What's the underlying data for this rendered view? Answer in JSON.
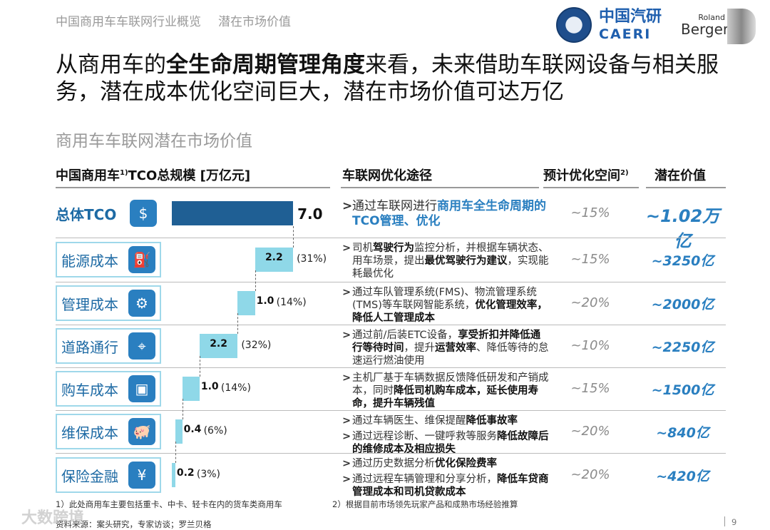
{
  "header": {
    "breadcrumb": [
      "中国商用车车联网行业概览",
      "潜在市场价值"
    ],
    "logo_caeri_cn": "中国汽研",
    "logo_caeri_en": "CAERI",
    "logo_rb_small": "Roland",
    "logo_rb_big": "Berger"
  },
  "title": {
    "pre": "从商用车的",
    "bold": "全生命周期管理角度",
    "post": "来看，未来借助车联网设备与相关服务，潜在成本优化空间巨大，潜在市场价值可达万亿"
  },
  "subtitle": "商用车车联网潜在市场价值",
  "columns": {
    "tco": "中国商用车",
    "tco_sup": "1)",
    "tco_rest": "TCO总规模 [万亿元]",
    "path": "车联网优化途径",
    "space": "预计优化空间",
    "space_sup": "2)",
    "value": "潜在价值"
  },
  "colors": {
    "accent": "#2a7fc0",
    "total_bar": "#1f5f94",
    "component_bar": "#8fd8e8"
  },
  "rows": [
    {
      "label": "总体TCO",
      "icon": "money-hand-icon",
      "bar": "7.0",
      "share": "",
      "space": "~15%",
      "value": "~1.02万亿",
      "desc": [
        [
          [
            "通过车联网进行",
            0
          ],
          [
            "商用车全生命周期的TCO管理、优化",
            2
          ]
        ]
      ]
    },
    {
      "label": "能源成本",
      "icon": "fuel-coins-icon",
      "bar": "2.2",
      "share": "(31%)",
      "space": "~15%",
      "value": "~3250亿",
      "desc": [
        [
          [
            "司机",
            0
          ],
          [
            "驾驶行为",
            1
          ],
          [
            "监控分析，并根据车辆状态、用车场景，提出",
            0
          ],
          [
            "最优驾驶行为建议",
            1
          ],
          [
            "，实现能耗最优化",
            0
          ]
        ]
      ]
    },
    {
      "label": "管理成本",
      "icon": "gears-icon",
      "bar": "1.0",
      "share": "(14%)",
      "space": "~20%",
      "value": "~2000亿",
      "desc": [
        [
          [
            "通过车队管理系统(FMS)、物流管理系统(TMS)等车联网智能系统，",
            0
          ],
          [
            "优化管理效率，降低人工管理成本",
            1
          ]
        ]
      ]
    },
    {
      "label": "道路通行",
      "icon": "map-pin-icon",
      "bar": "2.2",
      "share": "(32%)",
      "space": "~10%",
      "value": "~2250亿",
      "desc": [
        [
          [
            "通过前/后装ETC设备，",
            0
          ],
          [
            "享受折扣并降低通行等待时间",
            1
          ],
          [
            "，提升",
            0
          ],
          [
            "运营效率",
            1
          ],
          [
            "、降低等待的怠速运行燃油使用",
            0
          ]
        ]
      ]
    },
    {
      "label": "购车成本",
      "icon": "banknote-icon",
      "bar": "1.0",
      "share": "(14%)",
      "space": "~15%",
      "value": "~1500亿",
      "desc": [
        [
          [
            "主机厂基于车辆数据反馈降低研发和产销成本，同时",
            0
          ],
          [
            "降低司机购车成本，延长使用寿命，提升车辆残值",
            1
          ]
        ]
      ]
    },
    {
      "label": "维保成本",
      "icon": "piggy-bank-icon",
      "bar": "0.4",
      "share": "(6%)",
      "space": "~20%",
      "value": "~840亿",
      "desc": [
        [
          [
            "通过车辆医生、维保提醒",
            0
          ],
          [
            "降低事故率",
            1
          ]
        ],
        [
          [
            "通过远程诊断、一键呼救等服务",
            0
          ],
          [
            "降低故障后的维修成本及相应损失",
            1
          ]
        ]
      ]
    },
    {
      "label": "保险金融",
      "icon": "money-bag-icon",
      "bar": "0.2",
      "share": "(3%)",
      "space": "~20%",
      "value": "~420亿",
      "desc": [
        [
          [
            "通过历史数据分析",
            0
          ],
          [
            "优化保险费率",
            1
          ]
        ],
        [
          [
            "通过远程车辆管理和分享分析，",
            0
          ],
          [
            "降低车贷商管理成本和司机贷款成本",
            1
          ]
        ]
      ]
    }
  ],
  "chart_data": {
    "type": "bar",
    "subtype": "waterfall",
    "orientation": "horizontal",
    "categories": [
      "总体TCO",
      "能源成本",
      "管理成本",
      "道路通行",
      "购车成本",
      "维保成本",
      "保险金融"
    ],
    "values": [
      7.0,
      2.2,
      1.0,
      2.2,
      1.0,
      0.4,
      0.2
    ],
    "shares": [
      "",
      "(31%)",
      "(14%)",
      "(32%)",
      "(14%)",
      "(6%)",
      "(3%)"
    ],
    "unit": "万亿元",
    "xlim": [
      0,
      7.0
    ]
  },
  "footer": {
    "note1": "1）此处商用车主要包括重卡、中卡、轻卡在内的货车类商用车",
    "note2": "2）根据目前市场领先玩家产品和成熟市场经验推算",
    "source": "资料来源：案头研究，专家访谈；罗兰贝格",
    "page": "9",
    "watermark": "大数跨境"
  }
}
